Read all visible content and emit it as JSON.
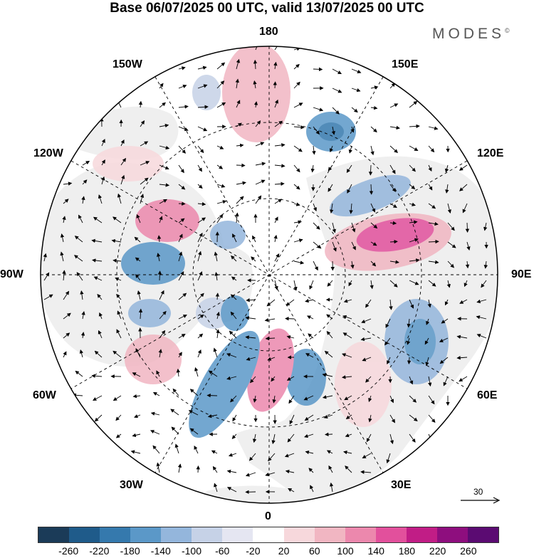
{
  "title": "Base 06/07/2025 00 UTC, valid 13/07/2025 00 UTC",
  "brand": {
    "text": "MODES",
    "mark": "©"
  },
  "longitude_labels": {
    "top": "180",
    "bottom": "0",
    "left": "90W",
    "right": "90E",
    "upper_left_1": "150W",
    "upper_left_2": "120W",
    "lower_left_1": "60W",
    "lower_left_2": "30W",
    "upper_right_1": "150E",
    "upper_right_2": "120E",
    "lower_right_1": "60E",
    "lower_right_2": "30E"
  },
  "reference_vector": {
    "label": "30"
  },
  "colorbar": {
    "colors": [
      "#1b3b58",
      "#1f5b8a",
      "#3579ad",
      "#5b98c8",
      "#94b6dc",
      "#c6d2e7",
      "#e5e6f2",
      "#ffffff",
      "#f7d8dc",
      "#f1b6c2",
      "#ec88ad",
      "#e2509c",
      "#c11d86",
      "#8e0e7e",
      "#5b0b72"
    ],
    "tick_labels": [
      "-260",
      "-220",
      "-180",
      "-140",
      "-100",
      "-60",
      "-20",
      "20",
      "60",
      "100",
      "140",
      "180",
      "220",
      "260"
    ]
  },
  "map": {
    "projection": "north-polar-stereographic",
    "land_color": "#efefef",
    "ocean_color": "#ffffff"
  }
}
